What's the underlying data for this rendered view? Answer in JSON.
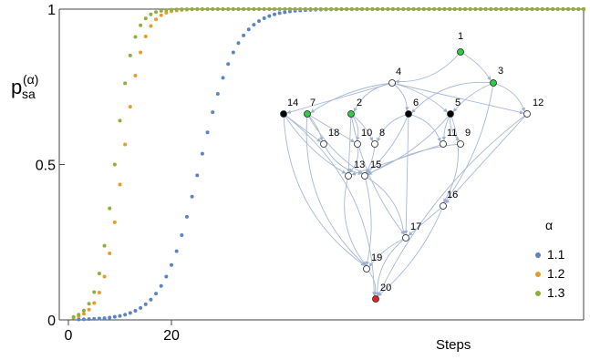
{
  "chart_data": {
    "type": "scatter",
    "title": "",
    "ylabel": {
      "base": "p",
      "sub": "sa",
      "sup": "(α)"
    },
    "xlabel": "Steps",
    "xlim": [
      0,
      100
    ],
    "ylim": [
      0,
      1
    ],
    "x_ticks": [
      {
        "value": 0,
        "label": "0"
      },
      {
        "value": 20,
        "label": "20"
      }
    ],
    "y_ticks": [
      {
        "value": 0,
        "label": "0"
      },
      {
        "value": 0.5,
        "label": "0.5"
      },
      {
        "value": 1,
        "label": "1"
      }
    ],
    "legend_title": "α",
    "series": [
      {
        "name": "1.1",
        "color": "#5b84c4",
        "x0": 2,
        "midpoint": 25.5,
        "steepness": 0.28,
        "n": 99
      },
      {
        "name": "1.2",
        "color": "#e89c2a",
        "x0": 1,
        "midpoint": 10.5,
        "steepness": 0.52,
        "n": 100
      },
      {
        "name": "1.3",
        "color": "#8fae3a",
        "x0": 1,
        "midpoint": 9,
        "steepness": 0.58,
        "n": 100
      }
    ]
  },
  "graph": {
    "nodes": [
      {
        "id": "1",
        "color": "#2ecc40"
      },
      {
        "id": "2",
        "color": "#2ecc40"
      },
      {
        "id": "3",
        "color": "#2ecc40"
      },
      {
        "id": "4",
        "color": "#ffffff"
      },
      {
        "id": "5",
        "color": "#000000"
      },
      {
        "id": "6",
        "color": "#000000"
      },
      {
        "id": "7",
        "color": "#2ecc40"
      },
      {
        "id": "8",
        "color": "#ffffff"
      },
      {
        "id": "9",
        "color": "#ffffff"
      },
      {
        "id": "10",
        "color": "#ffffff"
      },
      {
        "id": "11",
        "color": "#ffffff"
      },
      {
        "id": "12",
        "color": "#ffffff"
      },
      {
        "id": "13",
        "color": "#ffffff"
      },
      {
        "id": "14",
        "color": "#000000"
      },
      {
        "id": "15",
        "color": "#ffffff"
      },
      {
        "id": "16",
        "color": "#ffffff"
      },
      {
        "id": "17",
        "color": "#ffffff"
      },
      {
        "id": "18",
        "color": "#ffffff"
      },
      {
        "id": "19",
        "color": "#ffffff"
      },
      {
        "id": "20",
        "color": "#e8201f"
      }
    ],
    "edges": [
      [
        "1",
        "4"
      ],
      [
        "1",
        "3"
      ],
      [
        "4",
        "14"
      ],
      [
        "4",
        "7"
      ],
      [
        "4",
        "2"
      ],
      [
        "4",
        "6"
      ],
      [
        "4",
        "5"
      ],
      [
        "4",
        "12"
      ],
      [
        "3",
        "5"
      ],
      [
        "3",
        "6"
      ],
      [
        "3",
        "12"
      ],
      [
        "3",
        "16"
      ],
      [
        "14",
        "18"
      ],
      [
        "14",
        "13"
      ],
      [
        "14",
        "19"
      ],
      [
        "14",
        "20"
      ],
      [
        "7",
        "18"
      ],
      [
        "7",
        "10"
      ],
      [
        "7",
        "15"
      ],
      [
        "7",
        "19"
      ],
      [
        "2",
        "10"
      ],
      [
        "2",
        "8"
      ],
      [
        "2",
        "13"
      ],
      [
        "2",
        "17"
      ],
      [
        "6",
        "8"
      ],
      [
        "6",
        "11"
      ],
      [
        "6",
        "15"
      ],
      [
        "6",
        "17"
      ],
      [
        "5",
        "11"
      ],
      [
        "5",
        "9"
      ],
      [
        "5",
        "16"
      ],
      [
        "5",
        "15"
      ],
      [
        "12",
        "16"
      ],
      [
        "12",
        "20"
      ],
      [
        "18",
        "15"
      ],
      [
        "10",
        "13"
      ],
      [
        "8",
        "15"
      ],
      [
        "11",
        "13"
      ],
      [
        "9",
        "15"
      ],
      [
        "13",
        "19"
      ],
      [
        "15",
        "17"
      ],
      [
        "15",
        "19"
      ],
      [
        "16",
        "17"
      ],
      [
        "17",
        "19"
      ],
      [
        "17",
        "20"
      ],
      [
        "19",
        "20"
      ],
      [
        "16",
        "20"
      ]
    ]
  }
}
